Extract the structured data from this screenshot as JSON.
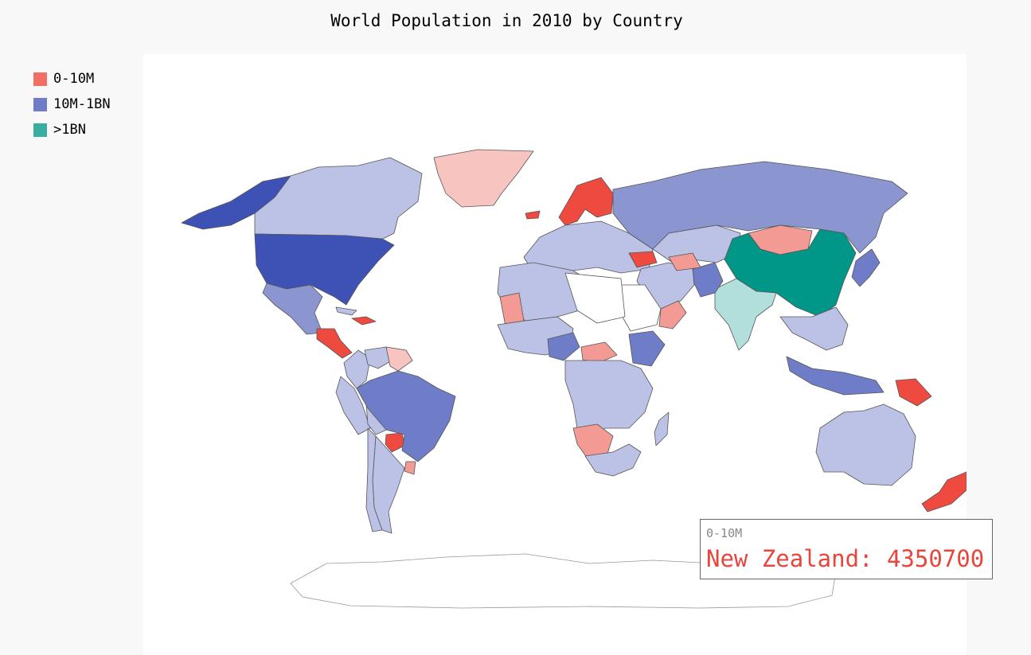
{
  "chart_data": {
    "type": "choropleth",
    "title": "World Population in 2010 by Country",
    "legend": {
      "placement": "top-left",
      "entries": [
        {
          "label": "0-10M",
          "color": "#f16e65"
        },
        {
          "label": "10M-1BN",
          "color": "#6f7dc8"
        },
        {
          "label": ">1BN",
          "color": "#3aada0"
        }
      ]
    },
    "colors": {
      "red_dark": "#ee4a40",
      "red_mid": "#f39a94",
      "red_light": "#f8c4c0",
      "blue_dark": "#3e51b5",
      "blue_mid": "#6f7dc8",
      "blue_midlight": "#8b95d0",
      "blue_light": "#bcc2e6",
      "teal_dark": "#009688",
      "teal_light": "#b2dfdb",
      "nodata": "#ffffff",
      "border": "#555555"
    },
    "regions": [
      {
        "name": "Greenland",
        "group": "0-10M",
        "shade": "red_light"
      },
      {
        "name": "Alaska",
        "group": "10M-1BN",
        "shade": "blue_dark"
      },
      {
        "name": "Canada",
        "group": "10M-1BN",
        "shade": "blue_light"
      },
      {
        "name": "United States",
        "group": "10M-1BN",
        "shade": "blue_dark"
      },
      {
        "name": "Mexico",
        "group": "10M-1BN",
        "shade": "blue_midlight"
      },
      {
        "name": "Central America",
        "group": "0-10M",
        "shade": "red_dark"
      },
      {
        "name": "Caribbean",
        "group": "0-10M",
        "shade": "red_dark"
      },
      {
        "name": "Cuba",
        "group": "10M-1BN",
        "shade": "blue_light"
      },
      {
        "name": "Colombia",
        "group": "10M-1BN",
        "shade": "blue_light"
      },
      {
        "name": "Venezuela",
        "group": "10M-1BN",
        "shade": "blue_light"
      },
      {
        "name": "Guianas",
        "group": "0-10M",
        "shade": "red_light"
      },
      {
        "name": "Ecuador Peru",
        "group": "10M-1BN",
        "shade": "blue_light"
      },
      {
        "name": "Bolivia",
        "group": "0-10M",
        "shade": "blue_light"
      },
      {
        "name": "Paraguay",
        "group": "0-10M",
        "shade": "red_dark"
      },
      {
        "name": "Uruguay",
        "group": "0-10M",
        "shade": "red_mid"
      },
      {
        "name": "Brazil",
        "group": "10M-1BN",
        "shade": "blue_mid"
      },
      {
        "name": "Argentina",
        "group": "10M-1BN",
        "shade": "blue_light"
      },
      {
        "name": "Chile",
        "group": "10M-1BN",
        "shade": "blue_light"
      },
      {
        "name": "Iceland",
        "group": "0-10M",
        "shade": "red_dark"
      },
      {
        "name": "Scandinavia",
        "group": "0-10M",
        "shade": "red_dark"
      },
      {
        "name": "Europe",
        "group": "10M-1BN",
        "shade": "blue_light"
      },
      {
        "name": "Russia",
        "group": "10M-1BN",
        "shade": "blue_midlight"
      },
      {
        "name": "Kazakhstan",
        "group": "10M-1BN",
        "shade": "blue_light"
      },
      {
        "name": "Mongolia",
        "group": "0-10M",
        "shade": "red_mid"
      },
      {
        "name": "China",
        "group": ">1BN",
        "shade": "teal_dark"
      },
      {
        "name": "India",
        "group": ">1BN",
        "shade": "teal_light"
      },
      {
        "name": "Pakistan",
        "group": "10M-1BN",
        "shade": "blue_mid"
      },
      {
        "name": "Middle East",
        "group": "10M-1BN",
        "shade": "blue_light"
      },
      {
        "name": "Saudi Arabia",
        "group": "10M-1BN",
        "shade": "nodata"
      },
      {
        "name": "Oman",
        "group": "0-10M",
        "shade": "red_mid"
      },
      {
        "name": "Caucasus",
        "group": "0-10M",
        "shade": "red_dark"
      },
      {
        "name": "Turkmenistan",
        "group": "0-10M",
        "shade": "red_mid"
      },
      {
        "name": "North Africa",
        "group": "10M-1BN",
        "shade": "blue_light"
      },
      {
        "name": "Libya Egypt",
        "group": "10M-1BN",
        "shade": "nodata"
      },
      {
        "name": "Mauritania",
        "group": "0-10M",
        "shade": "red_mid"
      },
      {
        "name": "West Africa",
        "group": "10M-1BN",
        "shade": "blue_light"
      },
      {
        "name": "Nigeria",
        "group": "10M-1BN",
        "shade": "blue_mid"
      },
      {
        "name": "Central African Republic",
        "group": "0-10M",
        "shade": "red_mid"
      },
      {
        "name": "Ethiopia",
        "group": "10M-1BN",
        "shade": "blue_mid"
      },
      {
        "name": "Central Africa",
        "group": "10M-1BN",
        "shade": "blue_light"
      },
      {
        "name": "Namibia Botswana",
        "group": "0-10M",
        "shade": "red_mid"
      },
      {
        "name": "South Africa",
        "group": "10M-1BN",
        "shade": "blue_light"
      },
      {
        "name": "Madagascar",
        "group": "10M-1BN",
        "shade": "blue_light"
      },
      {
        "name": "Southeast Asia",
        "group": "10M-1BN",
        "shade": "blue_light"
      },
      {
        "name": "Japan Korea",
        "group": "10M-1BN",
        "shade": "blue_mid"
      },
      {
        "name": "Indonesia",
        "group": "10M-1BN",
        "shade": "blue_mid"
      },
      {
        "name": "Papua New Guinea",
        "group": "0-10M",
        "shade": "red_dark"
      },
      {
        "name": "Australia",
        "group": "10M-1BN",
        "shade": "blue_light"
      },
      {
        "name": "New Zealand",
        "group": "0-10M",
        "shade": "red_dark",
        "value": 4350700
      },
      {
        "name": "Antarctica",
        "group": "",
        "shade": "nodata"
      }
    ]
  },
  "tooltip": {
    "category": "0-10M",
    "text": "New Zealand: 4350700"
  }
}
